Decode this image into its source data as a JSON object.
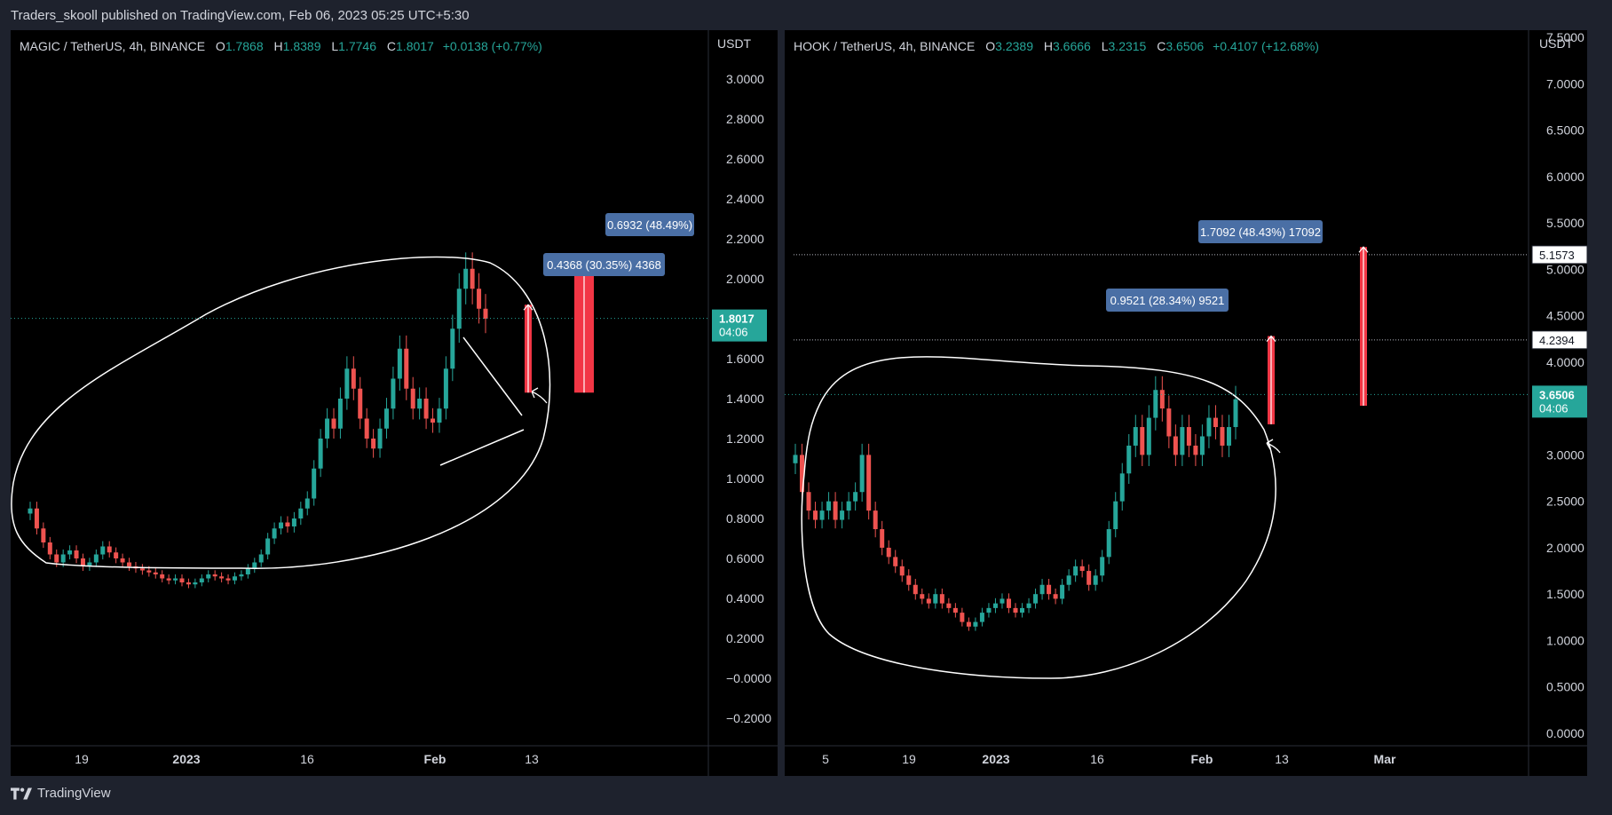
{
  "header": {
    "text": "Traders_skooll published on TradingView.com, Feb 06, 2023 05:25 UTC+5:30"
  },
  "footer": {
    "brand": "TradingView"
  },
  "colors": {
    "up": "#26a69a",
    "down": "#ef5350",
    "label_bg": "#4a6fa5",
    "price_tag": "#26a69a",
    "arrow": "#f23645"
  },
  "charts": [
    {
      "name": "left",
      "legend": {
        "symbol": "MAGIC / TetherUS, 4h, BINANCE",
        "open": "1.7868",
        "high": "1.8389",
        "low": "1.7746",
        "close": "1.8017",
        "change": "+0.0138 (+0.77%)"
      },
      "currency": "USDT",
      "price_ticks": [
        "3.0000",
        "2.8000",
        "2.6000",
        "2.4000",
        "2.2000",
        "2.0000",
        "1.8000",
        "1.6000",
        "1.4000",
        "1.2000",
        "1.0000",
        "0.8000",
        "0.6000",
        "0.4000",
        "0.2000",
        "−0.0000",
        "−0.2000"
      ],
      "time_ticks": [
        "19",
        "2023",
        "16",
        "Feb",
        "13"
      ],
      "current_price": {
        "value": "1.8017",
        "countdown": "04:06"
      },
      "measure_labels": [
        "0.6932 (48.49%)",
        "0.4368 (30.35%) 4368"
      ]
    },
    {
      "name": "right",
      "legend": {
        "symbol": "HOOK / TetherUS, 4h, BINANCE",
        "open": "3.2389",
        "high": "3.6666",
        "low": "3.2315",
        "close": "3.6506",
        "change": "+0.4107 (+12.68%)"
      },
      "currency": "USDT",
      "price_ticks": [
        "7.5000",
        "7.0000",
        "6.5000",
        "6.0000",
        "5.5000",
        "5.0000",
        "4.5000",
        "4.0000",
        "3.5000",
        "3.0000",
        "2.5000",
        "2.0000",
        "1.5000",
        "1.0000",
        "0.5000",
        "0.0000"
      ],
      "time_ticks": [
        "5",
        "19",
        "2023",
        "16",
        "Feb",
        "13",
        "Mar"
      ],
      "current_price": {
        "value": "3.6506",
        "countdown": "04:06"
      },
      "level_tags": [
        "5.1573",
        "4.2394"
      ],
      "measure_labels": [
        "1.7092 (48.43%) 17092",
        "0.9521 (28.34%) 9521"
      ]
    }
  ],
  "chart_data": [
    {
      "type": "candlestick",
      "title": "MAGIC / TetherUS, 4h, BINANCE",
      "ylim": [
        -0.2,
        3.0
      ],
      "x_ticks": [
        "19",
        "2023",
        "16",
        "Feb",
        "13"
      ],
      "close_path": [
        0.85,
        0.75,
        0.68,
        0.62,
        0.58,
        0.62,
        0.64,
        0.6,
        0.56,
        0.58,
        0.62,
        0.66,
        0.63,
        0.6,
        0.58,
        0.56,
        0.55,
        0.54,
        0.53,
        0.52,
        0.5,
        0.49,
        0.5,
        0.48,
        0.47,
        0.48,
        0.5,
        0.52,
        0.51,
        0.5,
        0.49,
        0.51,
        0.52,
        0.55,
        0.58,
        0.62,
        0.7,
        0.75,
        0.78,
        0.76,
        0.8,
        0.85,
        0.9,
        1.05,
        1.2,
        1.3,
        1.25,
        1.4,
        1.55,
        1.45,
        1.3,
        1.2,
        1.15,
        1.25,
        1.35,
        1.5,
        1.65,
        1.45,
        1.35,
        1.4,
        1.3,
        1.28,
        1.35,
        1.55,
        1.75,
        1.95,
        2.05,
        1.95,
        1.85,
        1.8
      ],
      "current_price": 1.8017,
      "measures": [
        {
          "label": "0.6932 (48.49%)",
          "from": 1.43,
          "to": 2.12
        },
        {
          "label": "0.4368 (30.35%) 4368",
          "from": 1.43,
          "to": 1.87
        }
      ]
    },
    {
      "type": "candlestick",
      "title": "HOOK / TetherUS, 4h, BINANCE",
      "ylim": [
        0.0,
        7.5
      ],
      "x_ticks": [
        "5",
        "19",
        "2023",
        "16",
        "Feb",
        "13",
        "Mar"
      ],
      "close_path": [
        3.0,
        2.6,
        2.4,
        2.3,
        2.4,
        2.5,
        2.3,
        2.4,
        2.5,
        2.6,
        3.0,
        2.4,
        2.2,
        2.0,
        1.9,
        1.8,
        1.7,
        1.6,
        1.5,
        1.45,
        1.4,
        1.5,
        1.4,
        1.35,
        1.3,
        1.2,
        1.15,
        1.2,
        1.3,
        1.35,
        1.4,
        1.45,
        1.35,
        1.3,
        1.35,
        1.4,
        1.5,
        1.6,
        1.5,
        1.45,
        1.6,
        1.7,
        1.8,
        1.75,
        1.6,
        1.7,
        1.9,
        2.2,
        2.5,
        2.8,
        3.1,
        3.3,
        3.0,
        3.4,
        3.7,
        3.5,
        3.2,
        3.0,
        3.3,
        3.1,
        3.0,
        3.2,
        3.4,
        3.3,
        3.1,
        3.3,
        3.6
      ],
      "current_price": 3.6506,
      "levels": [
        5.1573,
        4.2394
      ],
      "measures": [
        {
          "label": "1.7092 (48.43%) 17092",
          "from": 3.53,
          "to": 5.24
        },
        {
          "label": "0.9521 (28.34%) 9521",
          "from": 3.33,
          "to": 4.28
        }
      ]
    }
  ]
}
